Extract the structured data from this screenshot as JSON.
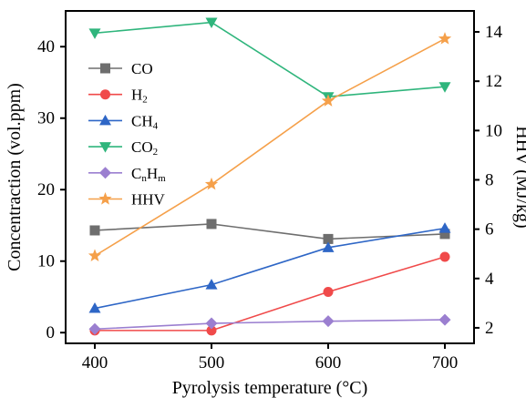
{
  "chart_data": {
    "type": "line",
    "xlabel": "Pyrolysis temperature (°C)",
    "ylabel": "Concentraction (vol.ppm)",
    "y2label": "HHV (MJ/kg)",
    "x": [
      400,
      500,
      600,
      700
    ],
    "xlim": [
      375,
      725
    ],
    "ylim": [
      -1.5,
      45
    ],
    "y2lim": [
      1.37,
      14.85
    ],
    "x_ticks": [
      400,
      500,
      600,
      700
    ],
    "y_ticks": [
      0,
      10,
      20,
      30,
      40
    ],
    "y2_ticks": [
      2,
      4,
      6,
      8,
      10,
      12,
      14
    ],
    "grid": false,
    "legend_position": "left",
    "series": [
      {
        "key": "co",
        "name": "CO",
        "sub": "",
        "axis": "left",
        "marker": "square",
        "color": "#6e6e6e",
        "values": [
          14.3,
          15.2,
          13.1,
          13.8
        ]
      },
      {
        "key": "h2",
        "name": "H",
        "sub": "2",
        "axis": "left",
        "marker": "circle",
        "color": "#f04a4a",
        "values": [
          0.3,
          0.3,
          5.7,
          10.6
        ]
      },
      {
        "key": "ch4",
        "name": "CH",
        "sub": "4",
        "axis": "left",
        "marker": "triangle-up",
        "color": "#2e66c6",
        "values": [
          3.4,
          6.7,
          11.9,
          14.6
        ]
      },
      {
        "key": "co2",
        "name": "CO",
        "sub": "2",
        "axis": "left",
        "marker": "triangle-down",
        "color": "#2fb57c",
        "values": [
          41.9,
          43.4,
          33.0,
          34.4
        ]
      },
      {
        "key": "cnhm",
        "name": "CnHm",
        "sub": "",
        "axis": "left",
        "marker": "diamond",
        "color": "#9b7fd0",
        "values": [
          0.5,
          1.3,
          1.6,
          1.8
        ]
      },
      {
        "key": "hhv",
        "name": "HHV",
        "sub": "",
        "axis": "right",
        "marker": "star",
        "color": "#f5a04a",
        "values": [
          4.92,
          7.82,
          11.2,
          13.72
        ]
      }
    ]
  }
}
